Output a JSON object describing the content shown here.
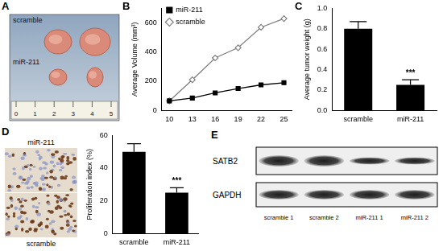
{
  "panel_letters": [
    "A",
    "B",
    "C",
    "D",
    "E"
  ],
  "tumor_photo": {
    "row_labels": [
      "scramble",
      "miR-211"
    ],
    "ruler_marks": [
      0,
      1,
      2,
      3,
      4,
      5
    ]
  },
  "chart_data": [
    {
      "type": "line",
      "x": [
        10,
        13,
        16,
        19,
        22,
        25
      ],
      "xlim": [
        9,
        26
      ],
      "xticks": [
        10,
        13,
        16,
        19,
        22,
        25
      ],
      "ylim": [
        0,
        700
      ],
      "yticks": [
        0,
        200,
        400,
        600
      ],
      "y_label": "Average Volume (mm³)",
      "legend": "upper left",
      "series": [
        {
          "name": "miR-211",
          "color": "#000000",
          "marker": "square",
          "values": [
            65,
            85,
            120,
            150,
            175,
            190
          ]
        },
        {
          "name": "scramble",
          "color": "#7f7f7f",
          "marker": "diamond",
          "values": [
            65,
            210,
            360,
            430,
            570,
            630
          ]
        }
      ]
    },
    {
      "type": "bar",
      "categories": [
        "scramble",
        "miR-211"
      ],
      "values": [
        0.8,
        0.25
      ],
      "errors": [
        0.07,
        0.05
      ],
      "color": "#000000",
      "ylim": [
        0,
        1
      ],
      "yticks": [
        {
          "value": 0,
          "label": "0.0"
        },
        0.2,
        0.4,
        0.6,
        0.8,
        {
          "value": 1,
          "label": "1.0"
        }
      ],
      "y_label": "Average tumor weight (g)",
      "annotations": [
        {
          "text": "***",
          "category": "miR-211"
        }
      ]
    },
    {
      "type": "bar",
      "categories": [
        "scramble",
        "miR-211"
      ],
      "values": [
        50,
        25
      ],
      "errors": [
        5,
        3
      ],
      "color": "#000000",
      "ylim": [
        0,
        60
      ],
      "yticks": [
        0,
        20,
        40,
        60
      ],
      "y_label": "Proliferation index (%)",
      "annotations": [
        {
          "text": "***",
          "category": "miR-211"
        }
      ]
    }
  ],
  "ihc_image": {
    "labels": [
      "miR-211",
      "scramble"
    ]
  },
  "western_blot": {
    "proteins": [
      "SATB2",
      "GAPDH"
    ],
    "lanes": [
      "scramble 1",
      "scramble 2",
      "miR-211 1",
      "miR-211 2"
    ]
  }
}
